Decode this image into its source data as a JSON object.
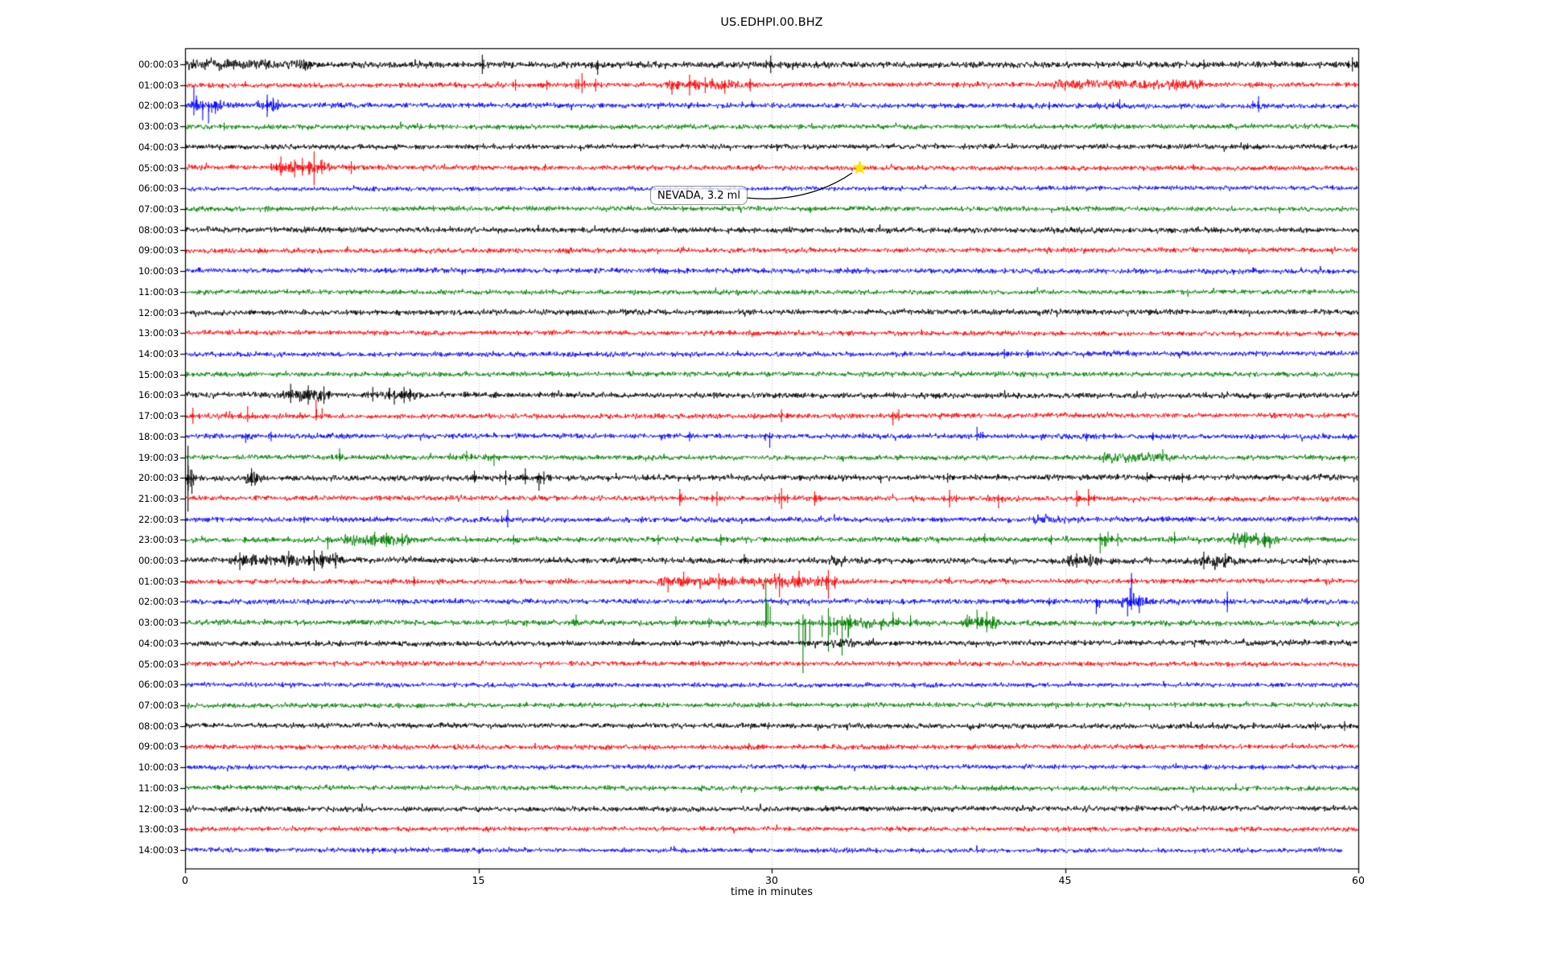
{
  "window": {
    "background": "#ffffff"
  },
  "chart_data": {
    "type": "line",
    "subtype": "helicorder-seismogram",
    "title": "US.EDHPI.00.BHZ",
    "xlabel": "time in minutes",
    "x_range": [
      0,
      60
    ],
    "xticks": [
      0,
      15,
      30,
      45,
      60
    ],
    "grid": {
      "vertical_minutes": [
        15,
        30,
        45
      ],
      "color": "#b4b4b4",
      "style": "dotted"
    },
    "trace_color_cycle": [
      "#000000",
      "#ff0000",
      "#0000ff",
      "#008000"
    ],
    "annotation": {
      "label": "NEVADA, 3.2 ml",
      "row": 5,
      "minute": 34.5,
      "marker": "star",
      "marker_color": "#ffe400"
    },
    "rows": [
      {
        "label": "00:00:03",
        "amp": 5.2,
        "bursts": [
          [
            0,
            6.5,
            6.5
          ]
        ],
        "spikes": [
          [
            15.2,
            12,
            12
          ],
          [
            21.1,
            5,
            13
          ],
          [
            29.95,
            11,
            11
          ],
          [
            52.1,
            6,
            6
          ],
          [
            59.7,
            9,
            9
          ]
        ]
      },
      {
        "label": "01:00:03",
        "amp": 4.0,
        "bursts": [
          [
            24.5,
            29,
            5.5
          ],
          [
            44.5,
            52,
            5
          ]
        ],
        "spikes": [
          [
            16.9,
            7,
            7
          ],
          [
            18.5,
            6,
            6
          ],
          [
            20.3,
            15,
            10
          ],
          [
            21.0,
            8,
            8
          ],
          [
            24.9,
            5,
            12
          ],
          [
            25.8,
            13,
            13
          ],
          [
            26.6,
            10,
            10
          ],
          [
            27.6,
            6,
            11
          ],
          [
            28.9,
            8,
            8
          ],
          [
            45.0,
            4,
            7
          ],
          [
            50.7,
            7,
            7
          ]
        ]
      },
      {
        "label": "02:00:03",
        "amp": 4.2,
        "bursts": [
          [
            0.3,
            1.8,
            6
          ],
          [
            3.9,
            4.8,
            6
          ]
        ],
        "spikes": [
          [
            0.45,
            25,
            12
          ],
          [
            0.9,
            6,
            18
          ],
          [
            1.2,
            5,
            22
          ],
          [
            1.55,
            5,
            10
          ],
          [
            4.2,
            14,
            14
          ],
          [
            4.5,
            10,
            7
          ],
          [
            44.2,
            5,
            5
          ],
          [
            47.8,
            8,
            4
          ],
          [
            54.9,
            12,
            8
          ]
        ]
      },
      {
        "label": "03:00:03",
        "amp": 4.0,
        "bursts": [],
        "spikes": [
          [
            2.0,
            5,
            5
          ]
        ]
      },
      {
        "label": "04:00:03",
        "amp": 4.2,
        "bursts": [],
        "spikes": []
      },
      {
        "label": "05:00:03",
        "amp": 4.0,
        "bursts": [
          [
            4.6,
            7.3,
            6.5
          ]
        ],
        "spikes": [
          [
            4.9,
            14,
            10
          ],
          [
            5.6,
            10,
            12
          ],
          [
            6.0,
            12,
            10
          ],
          [
            6.6,
            20,
            22
          ],
          [
            7.0,
            10,
            8
          ],
          [
            8.5,
            8,
            8
          ],
          [
            34.5,
            5,
            5
          ]
        ]
      },
      {
        "label": "06:00:03",
        "amp": 3.6,
        "bursts": [],
        "spikes": []
      },
      {
        "label": "07:00:03",
        "amp": 4.0,
        "bursts": [],
        "spikes": []
      },
      {
        "label": "08:00:03",
        "amp": 4.6,
        "bursts": [],
        "spikes": []
      },
      {
        "label": "09:00:03",
        "amp": 4.0,
        "bursts": [],
        "spikes": []
      },
      {
        "label": "10:00:03",
        "amp": 4.2,
        "bursts": [],
        "spikes": []
      },
      {
        "label": "11:00:03",
        "amp": 4.0,
        "bursts": [],
        "spikes": []
      },
      {
        "label": "12:00:03",
        "amp": 4.4,
        "bursts": [],
        "spikes": []
      },
      {
        "label": "13:00:03",
        "amp": 3.8,
        "bursts": [],
        "spikes": []
      },
      {
        "label": "14:00:03",
        "amp": 4.0,
        "bursts": [],
        "spikes": [
          [
            41.9,
            6,
            6
          ],
          [
            43.1,
            5,
            5
          ]
        ]
      },
      {
        "label": "15:00:03",
        "amp": 4.0,
        "bursts": [],
        "spikes": []
      },
      {
        "label": "16:00:03",
        "amp": 4.6,
        "bursts": [
          [
            5.2,
            7.3,
            8
          ],
          [
            10.4,
            11.7,
            6.5
          ]
        ],
        "spikes": [
          [
            5.4,
            14,
            10
          ],
          [
            6.3,
            12,
            12
          ],
          [
            7.1,
            11,
            11
          ],
          [
            9.6,
            10,
            8
          ],
          [
            10.7,
            5,
            12
          ],
          [
            11.2,
            10,
            10
          ],
          [
            11.5,
            8,
            8
          ]
        ]
      },
      {
        "label": "17:00:03",
        "amp": 4.0,
        "bursts": [],
        "spikes": [
          [
            0.4,
            10,
            10
          ],
          [
            3.2,
            12,
            8
          ],
          [
            6.7,
            20,
            6
          ],
          [
            30.5,
            8,
            8
          ],
          [
            36.2,
            5,
            12
          ],
          [
            36.5,
            8,
            6
          ]
        ]
      },
      {
        "label": "18:00:03",
        "amp": 4.1,
        "bursts": [],
        "spikes": [
          [
            3.1,
            4,
            8
          ],
          [
            4.4,
            6,
            6
          ],
          [
            25.8,
            6,
            6
          ],
          [
            29.9,
            5,
            14
          ],
          [
            40.5,
            12,
            5
          ],
          [
            46.1,
            4,
            6
          ],
          [
            49.5,
            5,
            5
          ]
        ]
      },
      {
        "label": "19:00:03",
        "amp": 4.0,
        "bursts": [
          [
            47.0,
            50.3,
            5.5
          ]
        ],
        "spikes": [
          [
            7.9,
            11,
            5
          ],
          [
            14.4,
            8,
            5
          ],
          [
            15.8,
            4,
            11
          ],
          [
            50.0,
            10,
            5
          ]
        ]
      },
      {
        "label": "20:00:03",
        "amp": 4.6,
        "bursts": [
          [
            3.2,
            3.8,
            8
          ]
        ],
        "spikes": [
          [
            0.15,
            40,
            42
          ],
          [
            0.35,
            10,
            20
          ],
          [
            3.4,
            12,
            10
          ],
          [
            14.8,
            9,
            6
          ],
          [
            16.4,
            9,
            9
          ],
          [
            17.4,
            12,
            8
          ],
          [
            18.1,
            6,
            16
          ],
          [
            18.35,
            8,
            8
          ],
          [
            39.0,
            6,
            6
          ],
          [
            49.2,
            7,
            5
          ],
          [
            51.0,
            6,
            6
          ]
        ]
      },
      {
        "label": "21:00:03",
        "amp": 4.0,
        "bursts": [],
        "spikes": [
          [
            25.3,
            12,
            9
          ],
          [
            27.2,
            9,
            9
          ],
          [
            30.5,
            13,
            13
          ],
          [
            32.2,
            9,
            9
          ],
          [
            39.1,
            11,
            11
          ],
          [
            41.6,
            5,
            12
          ],
          [
            45.6,
            10,
            10
          ],
          [
            46.2,
            12,
            9
          ]
        ]
      },
      {
        "label": "22:00:03",
        "amp": 4.2,
        "bursts": [
          [
            43.5,
            45.0,
            5.5
          ]
        ],
        "spikes": [
          [
            16.5,
            12,
            10
          ]
        ]
      },
      {
        "label": "23:00:03",
        "amp": 4.4,
        "bursts": [
          [
            8.2,
            11.5,
            6.5
          ],
          [
            53.5,
            55.8,
            7
          ]
        ],
        "spikes": [
          [
            7.3,
            4,
            12
          ],
          [
            9.7,
            10,
            8
          ],
          [
            10.3,
            9,
            9
          ],
          [
            11.1,
            8,
            8
          ],
          [
            16.8,
            6,
            6
          ],
          [
            24.2,
            6,
            6
          ],
          [
            27.4,
            7,
            7
          ],
          [
            40.9,
            8,
            4
          ],
          [
            44.3,
            6,
            6
          ],
          [
            46.8,
            8,
            17
          ],
          [
            47.2,
            10,
            4
          ],
          [
            47.7,
            8,
            8
          ],
          [
            50.6,
            10,
            5
          ],
          [
            54.2,
            10,
            10
          ],
          [
            55.2,
            9,
            9
          ]
        ]
      },
      {
        "label": "00:00:03",
        "amp": 4.6,
        "bursts": [
          [
            2.5,
            8.0,
            6.5
          ],
          [
            33.0,
            33.7,
            7
          ],
          [
            45.2,
            46.6,
            6.5
          ],
          [
            51.8,
            53.5,
            6.5
          ]
        ],
        "spikes": [
          [
            2.8,
            10,
            12
          ],
          [
            5.3,
            12,
            8
          ],
          [
            6.6,
            13,
            13
          ],
          [
            7.0,
            12,
            10
          ],
          [
            7.7,
            10,
            10
          ],
          [
            28.6,
            8,
            4
          ],
          [
            45.6,
            9,
            9
          ],
          [
            46.3,
            8,
            8
          ],
          [
            52.1,
            11,
            11
          ],
          [
            53.2,
            9,
            9
          ],
          [
            57.5,
            6,
            6
          ]
        ]
      },
      {
        "label": "01:00:03",
        "amp": 4.0,
        "bursts": [
          [
            24.3,
            33.2,
            5.5
          ]
        ],
        "spikes": [
          [
            11.7,
            6,
            6
          ],
          [
            24.7,
            5,
            14
          ],
          [
            25.5,
            12,
            6
          ],
          [
            27.3,
            10,
            10
          ],
          [
            30.4,
            10,
            20
          ],
          [
            31.4,
            13,
            8
          ],
          [
            32.9,
            14,
            22
          ]
        ]
      },
      {
        "label": "02:00:03",
        "amp": 4.2,
        "bursts": [
          [
            47.9,
            49.0,
            7
          ]
        ],
        "spikes": [
          [
            44.2,
            5,
            5
          ],
          [
            46.6,
            4,
            15
          ],
          [
            48.2,
            6,
            18
          ],
          [
            48.4,
            36,
            10
          ],
          [
            48.8,
            8,
            14
          ],
          [
            53.3,
            13,
            13
          ]
        ]
      },
      {
        "label": "03:00:03",
        "amp": 4.4,
        "bursts": [
          [
            33.8,
            36.0,
            5.5
          ],
          [
            39.8,
            41.5,
            6.5
          ]
        ],
        "spikes": [
          [
            20.0,
            10,
            4
          ],
          [
            25.1,
            8,
            5
          ],
          [
            26.8,
            6,
            6
          ],
          [
            29.7,
            56,
            6
          ],
          [
            31.6,
            10,
            63
          ],
          [
            32.9,
            18,
            36
          ],
          [
            33.6,
            8,
            41
          ],
          [
            34.0,
            10,
            8
          ],
          [
            36.2,
            13,
            5
          ],
          [
            37.1,
            9,
            5
          ],
          [
            40.0,
            10,
            6
          ],
          [
            40.5,
            16,
            8
          ],
          [
            41.0,
            14,
            12
          ],
          [
            41.3,
            8,
            8
          ]
        ]
      },
      {
        "label": "04:00:03",
        "amp": 4.4,
        "bursts": [
          [
            32.9,
            34.2,
            5
          ]
        ],
        "spikes": []
      },
      {
        "label": "05:00:03",
        "amp": 3.8,
        "bursts": [],
        "spikes": []
      },
      {
        "label": "06:00:03",
        "amp": 3.7,
        "bursts": [],
        "spikes": []
      },
      {
        "label": "07:00:03",
        "amp": 4.0,
        "bursts": [],
        "spikes": []
      },
      {
        "label": "08:00:03",
        "amp": 4.3,
        "bursts": [],
        "spikes": [
          [
            57.8,
            5,
            5
          ],
          [
            59.3,
            6,
            6
          ]
        ]
      },
      {
        "label": "09:00:03",
        "amp": 3.9,
        "bursts": [],
        "spikes": []
      },
      {
        "label": "10:00:03",
        "amp": 3.7,
        "bursts": [],
        "spikes": []
      },
      {
        "label": "11:00:03",
        "amp": 4.0,
        "bursts": [],
        "spikes": []
      },
      {
        "label": "12:00:03",
        "amp": 4.3,
        "bursts": [],
        "spikes": []
      },
      {
        "label": "13:00:03",
        "amp": 3.7,
        "bursts": [],
        "spikes": []
      },
      {
        "label": "14:00:03",
        "amp": 3.7,
        "end": 59.2,
        "bursts": [],
        "spikes": []
      }
    ]
  }
}
